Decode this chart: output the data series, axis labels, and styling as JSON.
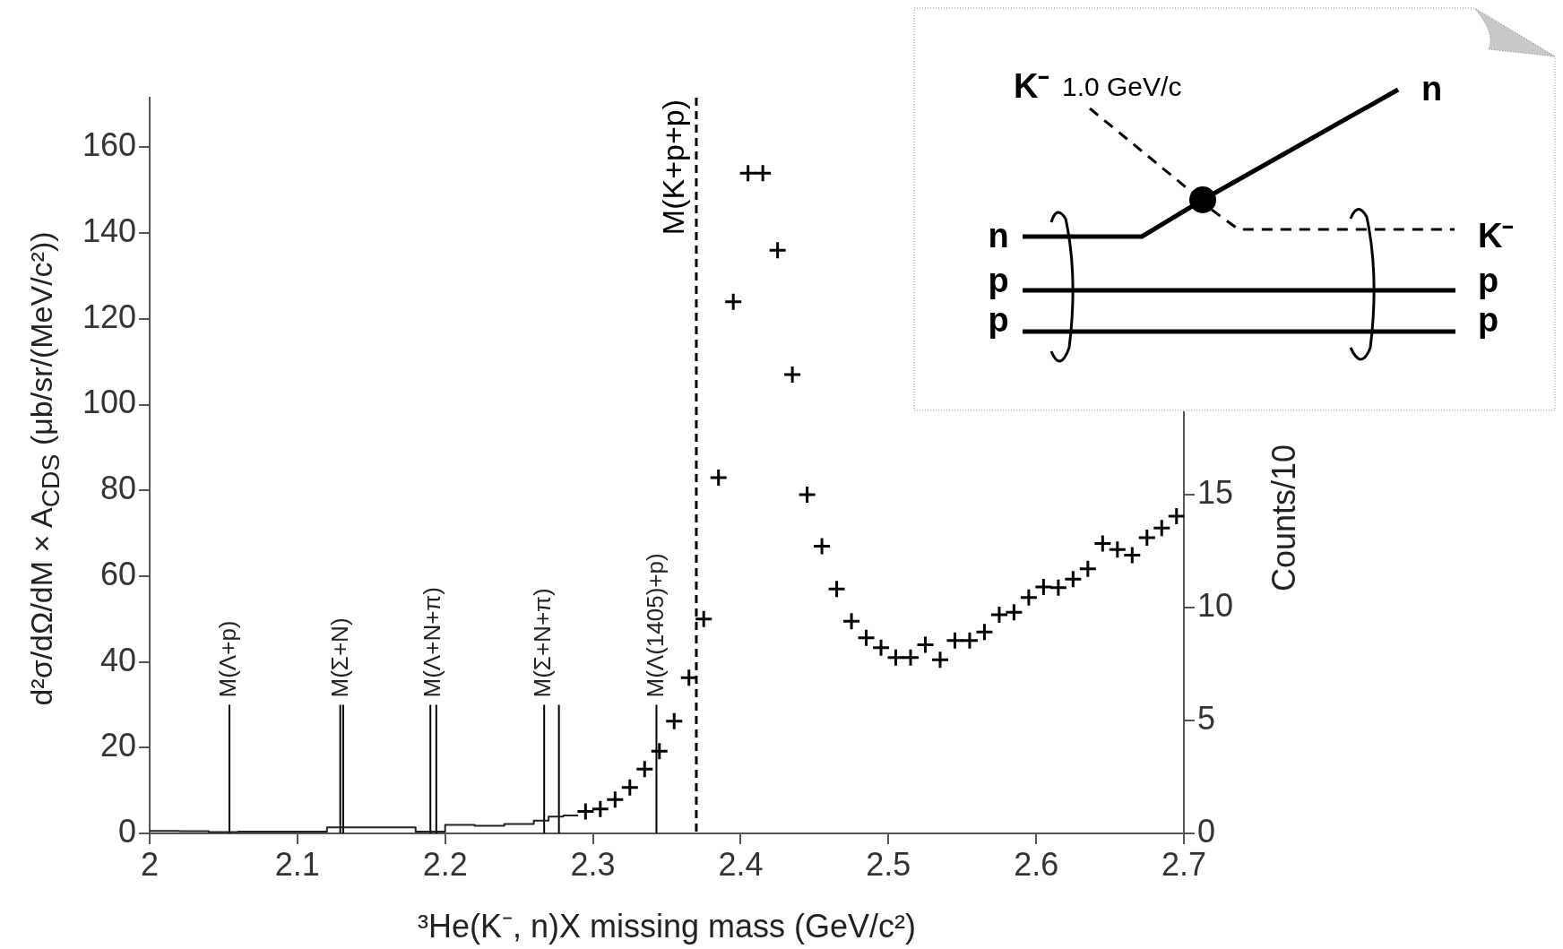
{
  "chart_data": {
    "type": "scatter",
    "xlabel": "³He(K⁻, n)X missing mass (GeV/c²)",
    "ylabel": "d²σ/dΩ/dM × A$_{CDS}$ (μb/sr/(MeV/c²))",
    "y2label": "Counts/10",
    "xlim": [
      2,
      2.7
    ],
    "xticks": [
      2,
      2.1,
      2.2,
      2.3,
      2.4,
      2.5,
      2.6,
      2.7
    ],
    "ylim": [
      0,
      171.6
    ],
    "yticks": [
      0,
      20,
      40,
      60,
      80,
      100,
      120,
      140,
      160
    ],
    "y2lim": [
      0,
      32.6
    ],
    "y2ticks": [
      0,
      5,
      10,
      15
    ],
    "grid": false,
    "legend": false,
    "series": [
      {
        "type": "scatter",
        "color": "#000000",
        "marker": "cross",
        "x": [
          2.295,
          2.305,
          2.315,
          2.325,
          2.335,
          2.345,
          2.355,
          2.365,
          2.375,
          2.385,
          2.395,
          2.405,
          2.415,
          2.425,
          2.435,
          2.445,
          2.455,
          2.465,
          2.475,
          2.485,
          2.495,
          2.505,
          2.515,
          2.525,
          2.535,
          2.545,
          2.555,
          2.565,
          2.575,
          2.585,
          2.595,
          2.605,
          2.615,
          2.625,
          2.635,
          2.645,
          2.655,
          2.665,
          2.675,
          2.685,
          2.695
        ],
        "values": [
          5.1,
          5.7,
          7.9,
          10.7,
          15,
          19.2,
          26.2,
          36.3,
          50,
          83,
          124,
          154,
          154,
          136,
          107,
          79,
          67,
          57,
          49.5,
          45.6,
          43.3,
          41,
          41,
          44,
          40.5,
          45,
          45,
          47,
          51,
          51.6,
          55,
          57.5,
          57.3,
          59.3,
          61.7,
          67.6,
          66.2,
          64.9,
          69,
          71.2,
          74
        ]
      },
      {
        "type": "step",
        "color": "#222222",
        "marker": "none",
        "x": [
          2.0,
          2.02,
          2.04,
          2.06,
          2.08,
          2.1,
          2.12,
          2.14,
          2.16,
          2.18,
          2.2,
          2.22,
          2.24,
          2.26,
          2.27,
          2.28,
          2.29
        ],
        "values": [
          0.6,
          0.6,
          0.5,
          0.3,
          0.4,
          0.4,
          0.4,
          1.4,
          1.4,
          1.4,
          0.4,
          2.0,
          1.8,
          2.2,
          3.0,
          3.9,
          4.2
        ]
      },
      {
        "type": "line",
        "color": "#000000",
        "marker": "none",
        "x": [
          2.054,
          2.054
        ],
        "values": [
          0,
          30
        ]
      },
      {
        "type": "line",
        "color": "#000000",
        "marker": "none",
        "x": [
          2.129,
          2.129
        ],
        "values": [
          0,
          30
        ]
      },
      {
        "type": "line",
        "color": "#000000",
        "marker": "none",
        "x": [
          2.131,
          2.131
        ],
        "values": [
          0,
          30
        ]
      },
      {
        "type": "line",
        "color": "#000000",
        "marker": "none",
        "x": [
          2.19,
          2.19
        ],
        "values": [
          0,
          30
        ]
      },
      {
        "type": "line",
        "color": "#000000",
        "marker": "none",
        "x": [
          2.194,
          2.194
        ],
        "values": [
          0,
          30
        ]
      },
      {
        "type": "line",
        "color": "#000000",
        "marker": "none",
        "x": [
          2.267,
          2.267
        ],
        "values": [
          0,
          30
        ]
      },
      {
        "type": "line",
        "color": "#000000",
        "marker": "none",
        "x": [
          2.277,
          2.277
        ],
        "values": [
          0,
          30
        ]
      },
      {
        "type": "line",
        "color": "#000000",
        "marker": "none",
        "x": [
          2.343,
          2.343
        ],
        "values": [
          0,
          30
        ]
      }
    ],
    "ref_lines": [
      {
        "axis": "x",
        "value": 2.37,
        "label": "M(K+p+p)",
        "line_style": "dashed",
        "color": "#000000"
      }
    ],
    "annotations": [
      {
        "text": "M(Λ+p)",
        "x": 2.054,
        "y": 30
      },
      {
        "text": "M(Σ+N)",
        "x": 2.13,
        "y": 30
      },
      {
        "text": "M(Λ+N+π)",
        "x": 2.192,
        "y": 30
      },
      {
        "text": "M(Σ+N+π)",
        "x": 2.267,
        "y": 30
      },
      {
        "text": "M(Λ(1405)+p)",
        "x": 2.343,
        "y": 30
      },
      "K⁻",
      "1.0 GeV/c",
      "n",
      "n",
      "p",
      "p",
      "K⁻",
      "p",
      "p"
    ]
  }
}
